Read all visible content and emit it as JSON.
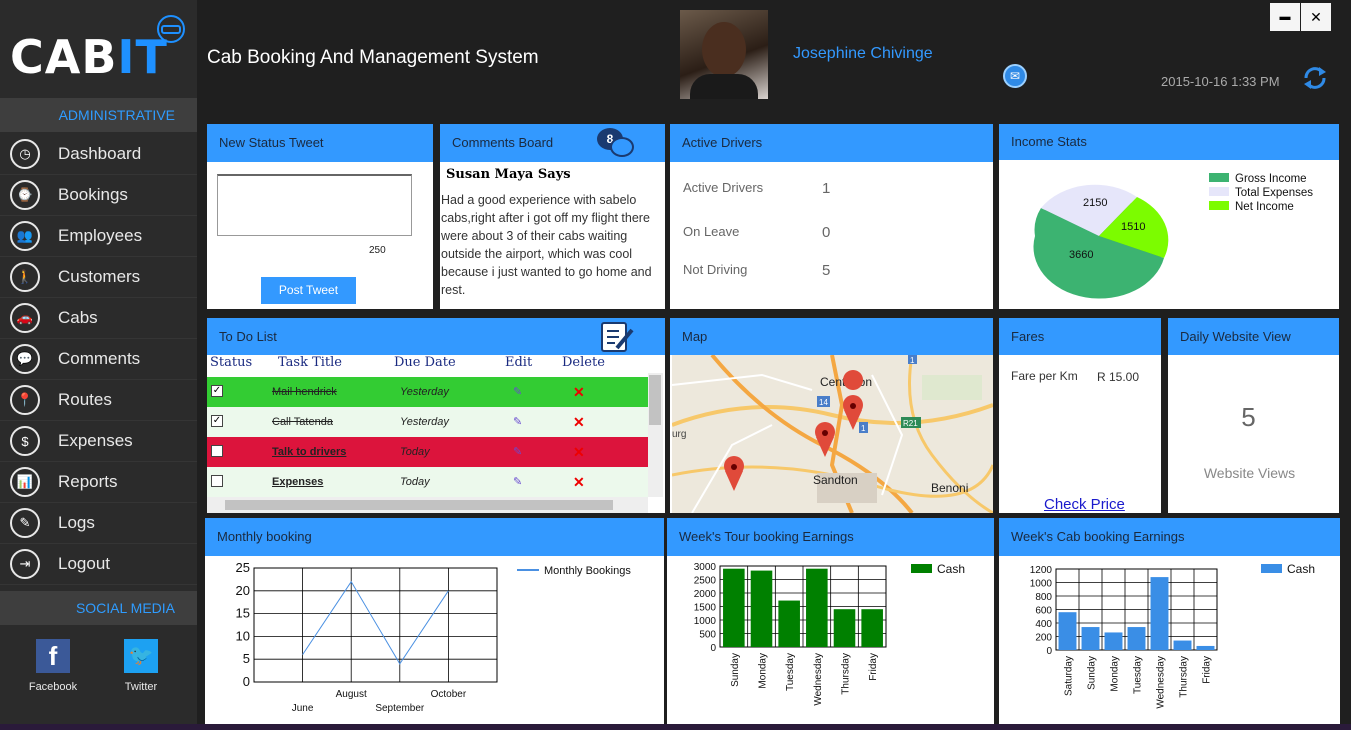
{
  "app": {
    "logo_main": "CAB",
    "logo_accent": "IT",
    "title": "Cab Booking And Management System",
    "user_name": "Josephine Chivinge",
    "datetime": "2015-10-16  1:33 PM",
    "window_minimize": "▬",
    "window_close": "✕"
  },
  "sidebar": {
    "admin_heading": "ADMINISTRATIVE",
    "items": [
      {
        "label": "Dashboard",
        "icon": "dashboard-icon"
      },
      {
        "label": "Bookings",
        "icon": "clock-icon"
      },
      {
        "label": "Employees",
        "icon": "employees-icon"
      },
      {
        "label": "Customers",
        "icon": "customer-icon"
      },
      {
        "label": "Cabs",
        "icon": "car-icon"
      },
      {
        "label": "Comments",
        "icon": "chat-icon"
      },
      {
        "label": "Routes",
        "icon": "route-icon"
      },
      {
        "label": "Expenses",
        "icon": "money-icon"
      },
      {
        "label": "Reports",
        "icon": "report-icon"
      },
      {
        "label": "Logs",
        "icon": "log-icon"
      },
      {
        "label": "Logout",
        "icon": "logout-icon"
      }
    ],
    "social_heading": "SOCIAL MEDIA",
    "facebook": "Facebook",
    "twitter": "Twitter"
  },
  "status_tweet": {
    "title": "New Status Tweet",
    "char_count": "250",
    "post_button": "Post Tweet"
  },
  "comments": {
    "title": "Comments Board",
    "badge": "8",
    "author": "Susan Maya Says",
    "text": "Had a good  experience with sabelo cabs,right after i got off my flight there were about 3 of their cabs waiting outside the airport, which was cool because i just wanted to go home and rest."
  },
  "drivers": {
    "title": "Active Drivers",
    "rows": [
      {
        "label": "Active Drivers",
        "value": "1"
      },
      {
        "label": "On Leave",
        "value": "0"
      },
      {
        "label": "Not Driving",
        "value": "5"
      }
    ]
  },
  "income": {
    "title": "Income Stats",
    "legend": [
      {
        "label": "Gross Income",
        "color": "#3cb371"
      },
      {
        "label": "Total Expenses",
        "color": "#e6e6fa"
      },
      {
        "label": "Net Income",
        "color": "#7cfc00"
      }
    ],
    "slice_labels": [
      "3660",
      "2150",
      "1510"
    ]
  },
  "todo": {
    "title": "To Do List",
    "headers": [
      "Status",
      "Task Title",
      "Due Date",
      "Edit",
      "Delete"
    ],
    "rows": [
      {
        "checked": "✓",
        "task": "Mail hendrick",
        "due": "Yesterday"
      },
      {
        "checked": "✓",
        "task": "Call Tatenda",
        "due": "Yesterday"
      },
      {
        "checked": "",
        "task": "Talk to drivers",
        "due": "Today"
      },
      {
        "checked": "",
        "task": "Expenses",
        "due": "Today"
      }
    ]
  },
  "map": {
    "title": "Map",
    "places": [
      "Centurion",
      "Sandton",
      "Benoni",
      "urg"
    ],
    "road_labels": [
      "14",
      "1",
      "R21",
      "1"
    ]
  },
  "fares": {
    "title": "Fares",
    "label": "Fare per Km",
    "value": "R 15.00",
    "link": "Check Price"
  },
  "website": {
    "title": "Daily Website View",
    "count": "5",
    "label": "Website Views"
  },
  "monthly_title": "Monthly booking",
  "tour_title": "Week's Tour booking Earnings",
  "cab_title": "Week's Cab booking Earnings",
  "chart_data": [
    {
      "type": "line",
      "title": "Monthly booking",
      "series_name": "Monthly Bookings",
      "categories": [
        "June",
        "August",
        "September",
        "October"
      ],
      "values": [
        6,
        22,
        4,
        20
      ],
      "ylim": [
        0,
        25
      ],
      "yticks": [
        "0",
        "5",
        "10",
        "15",
        "20",
        "25"
      ],
      "color": "#4a90e2"
    },
    {
      "type": "bar",
      "title": "Week's Tour booking Earnings",
      "series_name": "Cash",
      "categories": [
        "Sunday",
        "Monday",
        "Tuesday",
        "Wednesday",
        "Thursday",
        "Friday"
      ],
      "values": [
        2900,
        2830,
        1720,
        2900,
        1400,
        1400
      ],
      "ylim": [
        0,
        3000
      ],
      "yticks": [
        "0",
        "500",
        "1000",
        "1500",
        "2000",
        "2500",
        "3000"
      ],
      "color": "#008000"
    },
    {
      "type": "bar",
      "title": "Week's Cab booking Earnings",
      "series_name": "Cash",
      "categories": [
        "Saturday",
        "Sunday",
        "Monday",
        "Tuesday",
        "Wednesday",
        "Thursday",
        "Friday"
      ],
      "values": [
        560,
        340,
        260,
        340,
        1080,
        140,
        60
      ],
      "ylim": [
        0,
        1200
      ],
      "yticks": [
        "0",
        "200",
        "400",
        "600",
        "800",
        "1000",
        "1200"
      ],
      "color": "#3a8ee6"
    }
  ]
}
